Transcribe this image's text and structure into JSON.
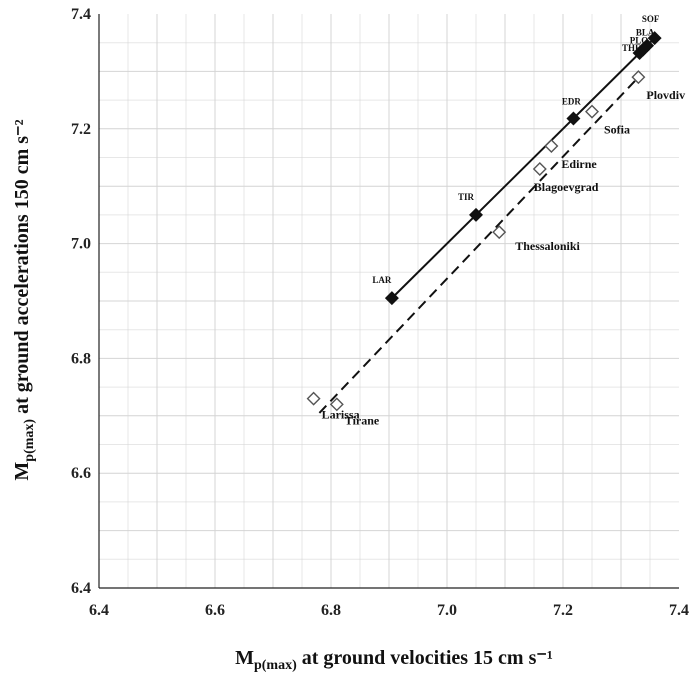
{
  "chart_data": {
    "type": "scatter",
    "title": "",
    "xlabel": {
      "main": "M",
      "sub": "p(max)",
      "rest": " at ground velocities 15 cm s⁻¹"
    },
    "ylabel": {
      "main": "M",
      "sub": "p(max)",
      "rest": " at ground accelerations 150 cm s⁻²"
    },
    "xlim": [
      6.4,
      7.4
    ],
    "ylim": [
      6.4,
      7.4
    ],
    "xticks": [
      "6.4",
      "6.6",
      "6.8",
      "7.0",
      "7.2",
      "7.4"
    ],
    "yticks": [
      "6.4",
      "6.6",
      "6.8",
      "7.0",
      "7.2",
      "7.4"
    ],
    "grid": true,
    "series": [
      {
        "marker": "filled-diamond",
        "line": "solid",
        "line_from": [
          6.905,
          6.905
        ],
        "line_to": [
          7.36,
          7.36
        ],
        "points": [
          {
            "label": "LAR",
            "x": 6.905,
            "y": 6.905
          },
          {
            "label": "TIR",
            "x": 7.05,
            "y": 7.05
          },
          {
            "label": "EDR",
            "x": 7.218,
            "y": 7.218
          },
          {
            "label": "THE",
            "x": 7.332,
            "y": 7.332
          },
          {
            "label": "PLO",
            "x": 7.338,
            "y": 7.338
          },
          {
            "label": "BLA",
            "x": 7.345,
            "y": 7.345
          },
          {
            "label": "SOF",
            "x": 7.358,
            "y": 7.358
          }
        ]
      },
      {
        "marker": "open-diamond",
        "line": "dashed",
        "line_from": [
          6.78,
          6.705
        ],
        "line_to": [
          7.335,
          7.295
        ],
        "points": [
          {
            "label": "Larissa",
            "x": 6.77,
            "y": 6.73
          },
          {
            "label": "Tirane",
            "x": 6.81,
            "y": 6.72
          },
          {
            "label": "Thessaloniki",
            "x": 7.09,
            "y": 7.02
          },
          {
            "label": "Blagoevgrad",
            "x": 7.16,
            "y": 7.13
          },
          {
            "label": "Edirne",
            "x": 7.18,
            "y": 7.17
          },
          {
            "label": "Sofia",
            "x": 7.25,
            "y": 7.23
          },
          {
            "label": "Plovdiv",
            "x": 7.33,
            "y": 7.29
          }
        ]
      }
    ]
  }
}
